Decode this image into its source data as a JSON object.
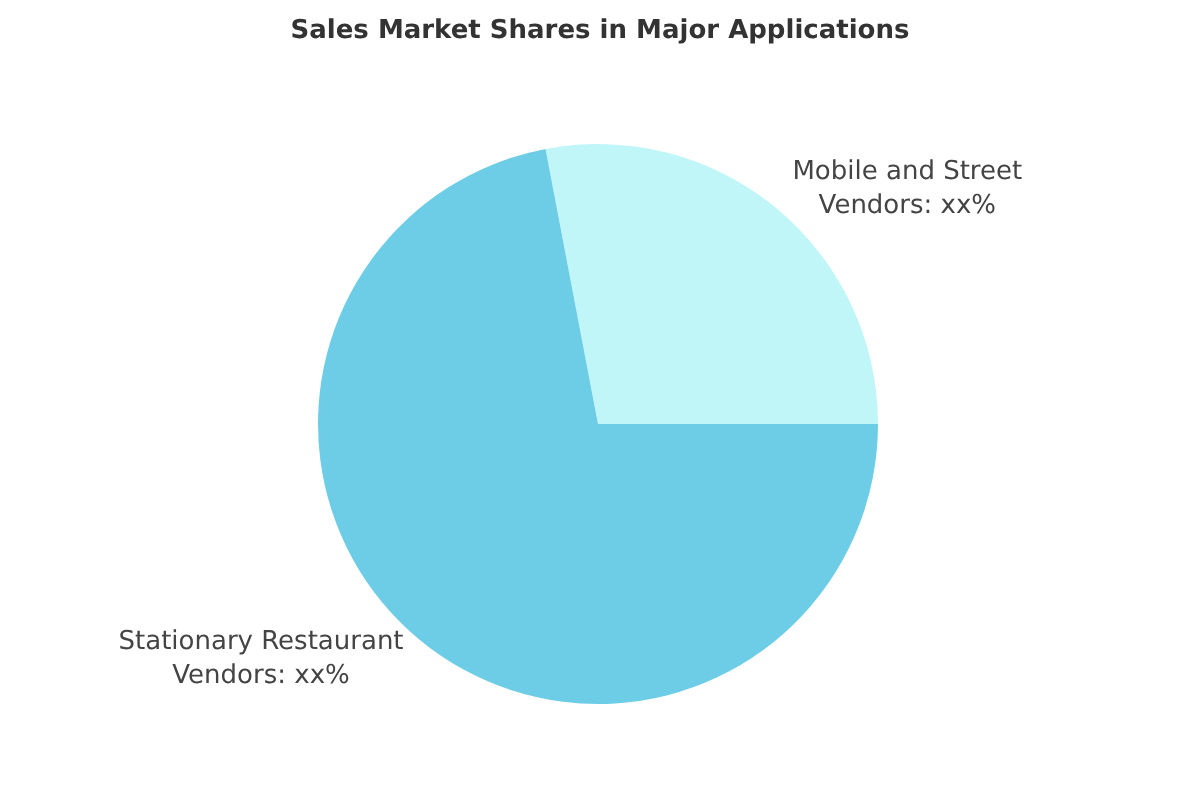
{
  "chart_data": {
    "type": "pie",
    "title": "Sales Market Shares in Major Applications",
    "categories": [
      "Mobile and Street Vendors: xx%",
      "Stationary Restaurant Vendors: xx%"
    ],
    "values": [
      28,
      72
    ],
    "colors": [
      "#c1f6f9",
      "#6dcde6"
    ],
    "legend": false
  }
}
